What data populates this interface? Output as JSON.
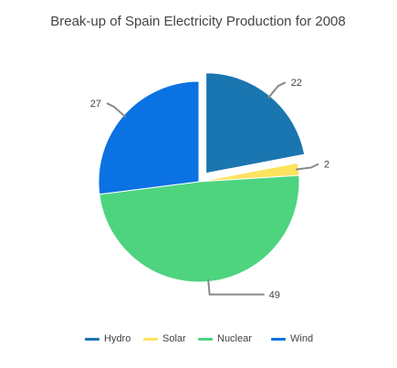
{
  "chart_data": {
    "type": "pie",
    "title": "Break-up of Spain Electricity Production for 2008",
    "categories": [
      "Hydro",
      "Solar",
      "Nuclear",
      "Wind"
    ],
    "values": [
      22,
      2,
      49,
      27
    ],
    "colors": [
      "#1a76b0",
      "#fde25e",
      "#4ed47f",
      "#0a72e3"
    ],
    "exploded": [
      "Hydro"
    ],
    "data_labels": [
      "22",
      "2",
      "49",
      "27"
    ],
    "legend_position": "bottom"
  }
}
